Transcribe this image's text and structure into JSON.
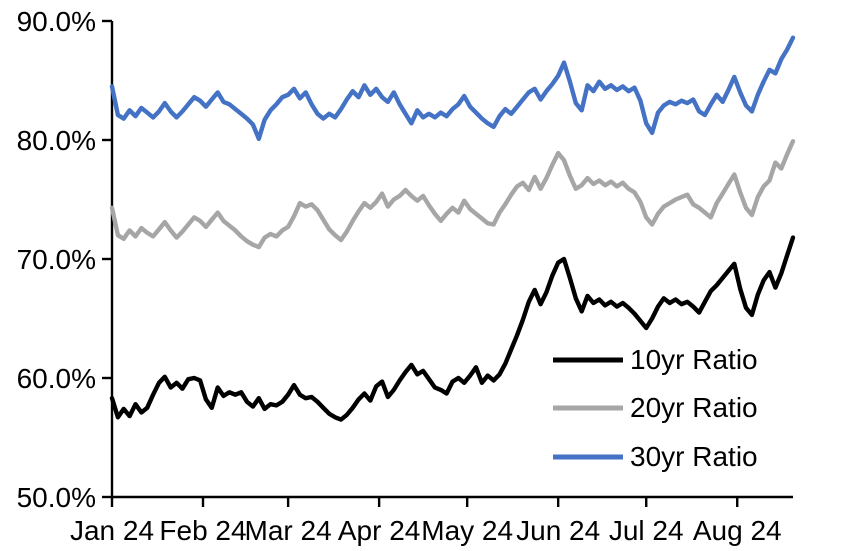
{
  "chart_data": {
    "type": "line",
    "title": "",
    "x_unit": "day_of_year_2024",
    "x_range_day_of_year": [
      1,
      233
    ],
    "ylim": [
      50,
      90
    ],
    "grid": false,
    "legend_position": "inside-lower-right",
    "background_color": "#ffffff",
    "axis_color": "#000000",
    "y_ticks": [
      {
        "label": "90.0%",
        "value": 90
      },
      {
        "label": "80.0%",
        "value": 80
      },
      {
        "label": "70.0%",
        "value": 70
      },
      {
        "label": "60.0%",
        "value": 60
      },
      {
        "label": "50.0%",
        "value": 50
      }
    ],
    "x_ticks": [
      {
        "label": "Jan 24",
        "day": 1
      },
      {
        "label": "Feb 24",
        "day": 32
      },
      {
        "label": "Mar 24",
        "day": 61
      },
      {
        "label": "Apr 24",
        "day": 92
      },
      {
        "label": "May 24",
        "day": 122
      },
      {
        "label": "Jun 24",
        "day": 153
      },
      {
        "label": "Jul 24",
        "day": 183
      },
      {
        "label": "Aug 24",
        "day": 214
      }
    ],
    "x": [
      1,
      3,
      5,
      7,
      9,
      11,
      13,
      15,
      17,
      19,
      21,
      23,
      25,
      27,
      29,
      31,
      33,
      35,
      37,
      39,
      41,
      43,
      45,
      47,
      49,
      51,
      53,
      55,
      57,
      59,
      61,
      63,
      65,
      67,
      69,
      71,
      73,
      75,
      77,
      79,
      81,
      83,
      85,
      87,
      89,
      91,
      93,
      95,
      97,
      99,
      101,
      103,
      105,
      107,
      109,
      111,
      113,
      115,
      117,
      119,
      121,
      123,
      125,
      127,
      129,
      131,
      133,
      135,
      137,
      139,
      141,
      143,
      145,
      147,
      149,
      151,
      153,
      155,
      157,
      159,
      161,
      163,
      165,
      167,
      169,
      171,
      173,
      175,
      177,
      179,
      181,
      183,
      185,
      187,
      189,
      191,
      193,
      195,
      197,
      199,
      201,
      203,
      205,
      207,
      209,
      211,
      213,
      215,
      217,
      219,
      221,
      223,
      225,
      227,
      229,
      231,
      233
    ],
    "series": [
      {
        "name": "10yr Ratio",
        "color": "#000000",
        "stroke_width": 4.4,
        "values": [
          58.3,
          56.7,
          57.4,
          56.8,
          57.8,
          57.1,
          57.5,
          58.6,
          59.6,
          60.1,
          59.2,
          59.6,
          59.1,
          59.9,
          60.0,
          59.8,
          58.2,
          57.5,
          59.2,
          58.5,
          58.8,
          58.6,
          58.8,
          58.0,
          57.6,
          58.3,
          57.4,
          57.8,
          57.7,
          58.0,
          58.6,
          59.4,
          58.6,
          58.3,
          58.4,
          58.0,
          57.5,
          57.0,
          56.7,
          56.5,
          56.9,
          57.5,
          58.2,
          58.7,
          58.1,
          59.3,
          59.7,
          58.4,
          59.0,
          59.8,
          60.5,
          61.1,
          60.3,
          60.6,
          59.9,
          59.2,
          59.0,
          58.7,
          59.7,
          60.0,
          59.6,
          60.2,
          60.9,
          59.6,
          60.2,
          59.8,
          60.3,
          61.2,
          62.4,
          63.6,
          64.9,
          66.4,
          67.4,
          66.2,
          67.2,
          68.6,
          69.7,
          70.0,
          68.4,
          66.7,
          65.6,
          66.9,
          66.3,
          66.6,
          66.1,
          66.4,
          66.0,
          66.3,
          65.9,
          65.4,
          64.8,
          64.2,
          65.0,
          66.0,
          66.7,
          66.3,
          66.6,
          66.2,
          66.4,
          66.0,
          65.5,
          66.4,
          67.3,
          67.8,
          68.4,
          69.0,
          69.6,
          67.5,
          65.9,
          65.3,
          67.0,
          68.2,
          68.9,
          67.6,
          68.8,
          70.3,
          71.8
        ]
      },
      {
        "name": "20yr Ratio",
        "color": "#a6a6a6",
        "stroke_width": 4.4,
        "values": [
          74.3,
          72.0,
          71.7,
          72.4,
          71.9,
          72.6,
          72.2,
          71.9,
          72.5,
          73.1,
          72.4,
          71.8,
          72.3,
          72.9,
          73.5,
          73.2,
          72.7,
          73.3,
          73.9,
          73.2,
          72.8,
          72.4,
          71.9,
          71.5,
          71.2,
          71.0,
          71.8,
          72.1,
          71.9,
          72.4,
          72.7,
          73.6,
          74.7,
          74.4,
          74.6,
          74.1,
          73.3,
          72.5,
          72.0,
          71.6,
          72.3,
          73.2,
          74.0,
          74.7,
          74.3,
          74.8,
          75.5,
          74.4,
          75.0,
          75.3,
          75.8,
          75.3,
          74.9,
          75.3,
          74.5,
          73.8,
          73.2,
          73.8,
          74.3,
          73.9,
          74.9,
          74.2,
          73.8,
          73.4,
          73.0,
          72.9,
          73.9,
          74.6,
          75.4,
          76.1,
          76.4,
          75.8,
          76.9,
          75.9,
          76.8,
          77.9,
          78.9,
          78.3,
          77.0,
          75.9,
          76.2,
          76.8,
          76.3,
          76.6,
          76.2,
          76.5,
          76.1,
          76.4,
          75.9,
          75.6,
          74.8,
          73.5,
          72.9,
          73.8,
          74.4,
          74.7,
          75.0,
          75.2,
          75.4,
          74.6,
          74.3,
          73.9,
          73.5,
          74.7,
          75.5,
          76.3,
          77.1,
          75.6,
          74.3,
          73.7,
          75.2,
          76.1,
          76.6,
          78.1,
          77.6,
          78.8,
          79.9
        ]
      },
      {
        "name": "30yr Ratio",
        "color": "#4472c4",
        "stroke_width": 4.4,
        "values": [
          84.5,
          82.1,
          81.8,
          82.5,
          82.0,
          82.7,
          82.3,
          81.9,
          82.4,
          83.1,
          82.4,
          81.9,
          82.4,
          83.0,
          83.6,
          83.3,
          82.8,
          83.4,
          84.0,
          83.2,
          83.0,
          82.6,
          82.2,
          81.8,
          81.3,
          80.1,
          81.7,
          82.5,
          83.0,
          83.6,
          83.8,
          84.3,
          83.5,
          84.0,
          83.0,
          82.2,
          81.8,
          82.2,
          81.9,
          82.6,
          83.4,
          84.1,
          83.6,
          84.6,
          83.8,
          84.3,
          83.6,
          83.2,
          84.0,
          83.0,
          82.2,
          81.4,
          82.5,
          81.9,
          82.2,
          81.9,
          82.3,
          82.0,
          82.6,
          83.0,
          83.7,
          82.8,
          82.3,
          81.8,
          81.4,
          81.1,
          82.0,
          82.6,
          82.2,
          82.8,
          83.4,
          84.0,
          84.3,
          83.4,
          84.1,
          84.7,
          85.4,
          86.5,
          84.9,
          83.1,
          82.5,
          84.6,
          84.1,
          84.9,
          84.3,
          84.6,
          84.2,
          84.5,
          84.1,
          84.4,
          83.3,
          81.4,
          80.6,
          82.3,
          82.9,
          83.2,
          83.0,
          83.3,
          83.1,
          83.4,
          82.4,
          82.1,
          83.0,
          83.8,
          83.2,
          84.2,
          85.3,
          84.0,
          82.9,
          82.4,
          83.8,
          84.9,
          85.9,
          85.6,
          86.8,
          87.6,
          88.6
        ]
      }
    ]
  },
  "legend": {
    "items": [
      {
        "label": "10yr Ratio"
      },
      {
        "label": "20yr Ratio"
      },
      {
        "label": "30yr Ratio"
      }
    ]
  }
}
